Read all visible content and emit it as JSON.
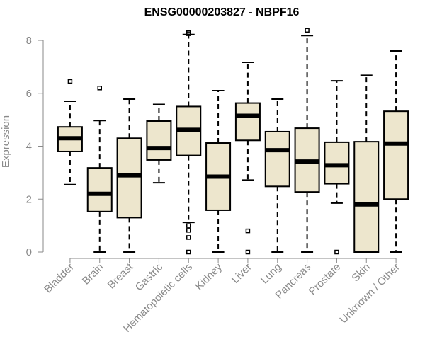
{
  "chart_data": {
    "type": "boxplot",
    "title": "ENSG00000203827 - NBPF16",
    "xlabel": "",
    "ylabel": "Expression",
    "ylim": [
      0,
      8.3
    ],
    "yticks": [
      0,
      2,
      4,
      6,
      8
    ],
    "grid": false,
    "legend": "none",
    "box_fill": "#ede6cd",
    "line_color": "#000000",
    "categories": [
      "Bladder",
      "Brain",
      "Breast",
      "Gastric",
      "Hematopoietic cells",
      "Kidney",
      "Liver",
      "Lung",
      "Pancreas",
      "Prostate",
      "Skin",
      "Unknown / Other"
    ],
    "boxes": [
      {
        "min": 2.55,
        "q1": 3.8,
        "median": 4.3,
        "q3": 4.73,
        "max": 5.7,
        "outliers": [
          6.45
        ]
      },
      {
        "min": 0.0,
        "q1": 1.53,
        "median": 2.2,
        "q3": 3.18,
        "max": 4.97,
        "outliers": [
          6.2
        ]
      },
      {
        "min": 0.0,
        "q1": 1.3,
        "median": 2.9,
        "q3": 4.3,
        "max": 5.78,
        "outliers": []
      },
      {
        "min": 2.62,
        "q1": 3.48,
        "median": 3.93,
        "q3": 4.95,
        "max": 5.58,
        "outliers": []
      },
      {
        "min": 1.12,
        "q1": 3.65,
        "median": 4.62,
        "q3": 5.5,
        "max": 8.22,
        "outliers": [
          8.3,
          8.25,
          1.0,
          0.82,
          0.55,
          0.0
        ]
      },
      {
        "min": 0.0,
        "q1": 1.58,
        "median": 2.85,
        "q3": 4.12,
        "max": 6.1,
        "outliers": []
      },
      {
        "min": 2.72,
        "q1": 4.22,
        "median": 5.15,
        "q3": 5.63,
        "max": 7.17,
        "outliers": [
          0.8,
          0.0
        ]
      },
      {
        "min": 0.0,
        "q1": 2.48,
        "median": 3.85,
        "q3": 4.55,
        "max": 5.78,
        "outliers": []
      },
      {
        "min": 0.0,
        "q1": 2.27,
        "median": 3.42,
        "q3": 4.68,
        "max": 8.18,
        "outliers": [
          8.38
        ]
      },
      {
        "min": 1.85,
        "q1": 2.58,
        "median": 3.28,
        "q3": 4.15,
        "max": 6.47,
        "outliers": [
          0.0
        ]
      },
      {
        "min": 0.0,
        "q1": 0.0,
        "median": 1.8,
        "q3": 4.17,
        "max": 6.68,
        "outliers": []
      },
      {
        "min": 0.0,
        "q1": 2.0,
        "median": 4.1,
        "q3": 5.32,
        "max": 7.6,
        "outliers": []
      }
    ]
  }
}
